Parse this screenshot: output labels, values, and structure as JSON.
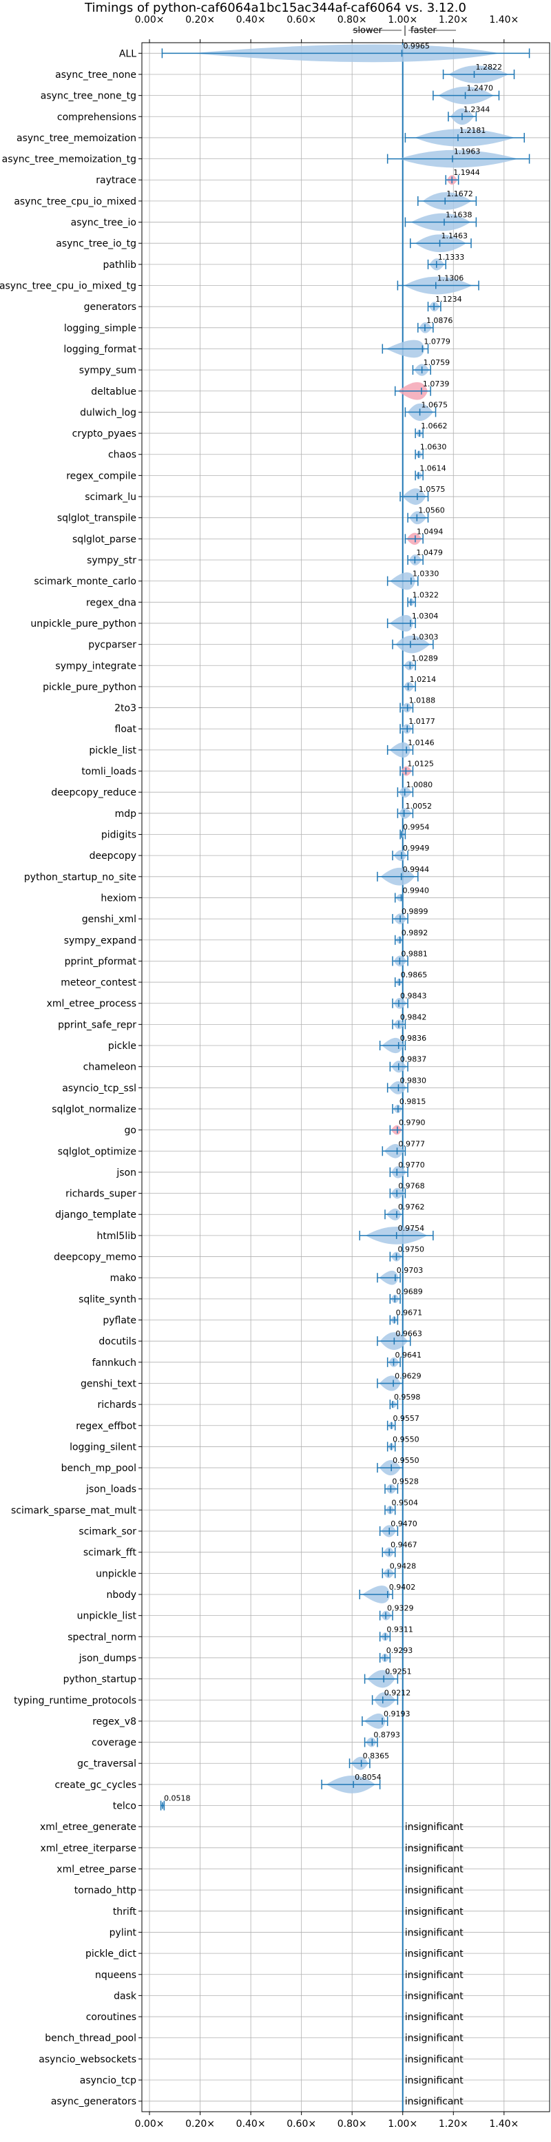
{
  "chart_data": {
    "type": "violin",
    "title": "Timings of python-caf6064a1bc15ac344af-caf6064 vs. 3.12.0",
    "direction_labels": {
      "slower": "slower",
      "faster": "faster"
    },
    "x_ticks": [
      "0.00×",
      "0.20×",
      "0.40×",
      "0.60×",
      "0.80×",
      "1.00×",
      "1.20×",
      "1.40×"
    ],
    "x_tick_values": [
      0,
      0.2,
      0.4,
      0.6,
      0.8,
      1.0,
      1.2,
      1.4
    ],
    "xlim": [
      -0.03,
      1.58
    ],
    "reference_line": 1.0,
    "insignificant_label": "insignificant",
    "colors": {
      "violin": "#a9c9e8",
      "whisker": "#1f77b4",
      "reference": "#1f77b4",
      "highlight": "#f4a6b5"
    },
    "benchmarks": [
      {
        "name": "ALL",
        "value": 0.9965,
        "label": "0.9965",
        "min": 0.05,
        "max": 1.5
      },
      {
        "name": "async_tree_none",
        "value": 1.2822,
        "label": "1.2822",
        "min": 1.16,
        "max": 1.44
      },
      {
        "name": "async_tree_none_tg",
        "value": 1.247,
        "label": "1.2470",
        "min": 1.12,
        "max": 1.38
      },
      {
        "name": "comprehensions",
        "value": 1.2344,
        "label": "1.2344",
        "min": 1.18,
        "max": 1.29
      },
      {
        "name": "async_tree_memoization",
        "value": 1.2181,
        "label": "1.2181",
        "min": 1.01,
        "max": 1.48
      },
      {
        "name": "async_tree_memoization_tg",
        "value": 1.1963,
        "label": "1.1963",
        "min": 0.94,
        "max": 1.5
      },
      {
        "name": "raytrace",
        "value": 1.1944,
        "label": "1.1944",
        "min": 1.17,
        "max": 1.22,
        "highlight": true
      },
      {
        "name": "async_tree_cpu_io_mixed",
        "value": 1.1672,
        "label": "1.1672",
        "min": 1.06,
        "max": 1.29
      },
      {
        "name": "async_tree_io",
        "value": 1.1638,
        "label": "1.1638",
        "min": 1.01,
        "max": 1.29
      },
      {
        "name": "async_tree_io_tg",
        "value": 1.1463,
        "label": "1.1463",
        "min": 1.03,
        "max": 1.27
      },
      {
        "name": "pathlib",
        "value": 1.1333,
        "label": "1.1333",
        "min": 1.1,
        "max": 1.17
      },
      {
        "name": "async_tree_cpu_io_mixed_tg",
        "value": 1.1306,
        "label": "1.1306",
        "min": 0.98,
        "max": 1.3
      },
      {
        "name": "generators",
        "value": 1.1234,
        "label": "1.1234",
        "min": 1.1,
        "max": 1.15
      },
      {
        "name": "logging_simple",
        "value": 1.0876,
        "label": "1.0876",
        "min": 1.06,
        "max": 1.12
      },
      {
        "name": "logging_format",
        "value": 1.0779,
        "label": "1.0779",
        "min": 0.92,
        "max": 1.1
      },
      {
        "name": "sympy_sum",
        "value": 1.0759,
        "label": "1.0759",
        "min": 1.04,
        "max": 1.11
      },
      {
        "name": "deltablue",
        "value": 1.0739,
        "label": "1.0739",
        "min": 0.97,
        "max": 1.11,
        "highlight": true
      },
      {
        "name": "dulwich_log",
        "value": 1.0675,
        "label": "1.0675",
        "min": 1.01,
        "max": 1.13
      },
      {
        "name": "crypto_pyaes",
        "value": 1.0662,
        "label": "1.0662",
        "min": 1.05,
        "max": 1.08
      },
      {
        "name": "chaos",
        "value": 1.063,
        "label": "1.0630",
        "min": 1.05,
        "max": 1.08
      },
      {
        "name": "regex_compile",
        "value": 1.0614,
        "label": "1.0614",
        "min": 1.05,
        "max": 1.08
      },
      {
        "name": "scimark_lu",
        "value": 1.0575,
        "label": "1.0575",
        "min": 0.99,
        "max": 1.1
      },
      {
        "name": "sqlglot_transpile",
        "value": 1.056,
        "label": "1.0560",
        "min": 1.02,
        "max": 1.1
      },
      {
        "name": "sqlglot_parse",
        "value": 1.0494,
        "label": "1.0494",
        "min": 1.01,
        "max": 1.08,
        "highlight": true
      },
      {
        "name": "sympy_str",
        "value": 1.0479,
        "label": "1.0479",
        "min": 1.02,
        "max": 1.08
      },
      {
        "name": "scimark_monte_carlo",
        "value": 1.033,
        "label": "1.0330",
        "min": 0.94,
        "max": 1.06
      },
      {
        "name": "regex_dna",
        "value": 1.0322,
        "label": "1.0322",
        "min": 1.02,
        "max": 1.05
      },
      {
        "name": "unpickle_pure_python",
        "value": 1.0304,
        "label": "1.0304",
        "min": 0.94,
        "max": 1.05
      },
      {
        "name": "pycparser",
        "value": 1.0303,
        "label": "1.0303",
        "min": 0.96,
        "max": 1.12
      },
      {
        "name": "sympy_integrate",
        "value": 1.0289,
        "label": "1.0289",
        "min": 1.0,
        "max": 1.05
      },
      {
        "name": "pickle_pure_python",
        "value": 1.0214,
        "label": "1.0214",
        "min": 1.0,
        "max": 1.05
      },
      {
        "name": "2to3",
        "value": 1.0188,
        "label": "1.0188",
        "min": 0.99,
        "max": 1.04
      },
      {
        "name": "float",
        "value": 1.0177,
        "label": "1.0177",
        "min": 0.99,
        "max": 1.04
      },
      {
        "name": "pickle_list",
        "value": 1.0146,
        "label": "1.0146",
        "min": 0.94,
        "max": 1.04
      },
      {
        "name": "tomli_loads",
        "value": 1.0125,
        "label": "1.0125",
        "min": 0.99,
        "max": 1.04,
        "highlight": true
      },
      {
        "name": "deepcopy_reduce",
        "value": 1.008,
        "label": "1.0080",
        "min": 0.98,
        "max": 1.04
      },
      {
        "name": "mdp",
        "value": 1.0052,
        "label": "1.0052",
        "min": 0.98,
        "max": 1.04
      },
      {
        "name": "pidigits",
        "value": 0.9954,
        "label": "0.9954",
        "min": 0.99,
        "max": 1.01
      },
      {
        "name": "deepcopy",
        "value": 0.9949,
        "label": "0.9949",
        "min": 0.96,
        "max": 1.02
      },
      {
        "name": "python_startup_no_site",
        "value": 0.9944,
        "label": "0.9944",
        "min": 0.9,
        "max": 1.06
      },
      {
        "name": "hexiom",
        "value": 0.994,
        "label": "0.9940",
        "min": 0.97,
        "max": 1.0
      },
      {
        "name": "genshi_xml",
        "value": 0.9899,
        "label": "0.9899",
        "min": 0.96,
        "max": 1.02
      },
      {
        "name": "sympy_expand",
        "value": 0.9892,
        "label": "0.9892",
        "min": 0.97,
        "max": 1.0
      },
      {
        "name": "pprint_pformat",
        "value": 0.9881,
        "label": "0.9881",
        "min": 0.96,
        "max": 1.02
      },
      {
        "name": "meteor_contest",
        "value": 0.9865,
        "label": "0.9865",
        "min": 0.97,
        "max": 1.0
      },
      {
        "name": "xml_etree_process",
        "value": 0.9843,
        "label": "0.9843",
        "min": 0.96,
        "max": 1.02
      },
      {
        "name": "pprint_safe_repr",
        "value": 0.9842,
        "label": "0.9842",
        "min": 0.96,
        "max": 1.01
      },
      {
        "name": "pickle",
        "value": 0.9836,
        "label": "0.9836",
        "min": 0.91,
        "max": 1.01
      },
      {
        "name": "chameleon",
        "value": 0.9837,
        "label": "0.9837",
        "min": 0.95,
        "max": 1.02
      },
      {
        "name": "asyncio_tcp_ssl",
        "value": 0.983,
        "label": "0.9830",
        "min": 0.94,
        "max": 1.02
      },
      {
        "name": "sqlglot_normalize",
        "value": 0.9815,
        "label": "0.9815",
        "min": 0.96,
        "max": 1.0
      },
      {
        "name": "go",
        "value": 0.979,
        "label": "0.9790",
        "min": 0.95,
        "max": 1.0,
        "highlight": true
      },
      {
        "name": "sqlglot_optimize",
        "value": 0.9777,
        "label": "0.9777",
        "min": 0.92,
        "max": 1.01
      },
      {
        "name": "json",
        "value": 0.977,
        "label": "0.9770",
        "min": 0.95,
        "max": 1.02
      },
      {
        "name": "richards_super",
        "value": 0.9768,
        "label": "0.9768",
        "min": 0.95,
        "max": 1.01
      },
      {
        "name": "django_template",
        "value": 0.9762,
        "label": "0.9762",
        "min": 0.93,
        "max": 1.0
      },
      {
        "name": "html5lib",
        "value": 0.9754,
        "label": "0.9754",
        "min": 0.83,
        "max": 1.12
      },
      {
        "name": "deepcopy_memo",
        "value": 0.975,
        "label": "0.9750",
        "min": 0.95,
        "max": 1.0
      },
      {
        "name": "mako",
        "value": 0.9703,
        "label": "0.9703",
        "min": 0.9,
        "max": 0.99
      },
      {
        "name": "sqlite_synth",
        "value": 0.9689,
        "label": "0.9689",
        "min": 0.95,
        "max": 0.99
      },
      {
        "name": "pyflate",
        "value": 0.9671,
        "label": "0.9671",
        "min": 0.95,
        "max": 0.98
      },
      {
        "name": "docutils",
        "value": 0.9663,
        "label": "0.9663",
        "min": 0.9,
        "max": 1.03
      },
      {
        "name": "fannkuch",
        "value": 0.9641,
        "label": "0.9641",
        "min": 0.94,
        "max": 0.99
      },
      {
        "name": "genshi_text",
        "value": 0.9629,
        "label": "0.9629",
        "min": 0.9,
        "max": 1.0
      },
      {
        "name": "richards",
        "value": 0.9598,
        "label": "0.9598",
        "min": 0.95,
        "max": 0.98
      },
      {
        "name": "regex_effbot",
        "value": 0.9557,
        "label": "0.9557",
        "min": 0.94,
        "max": 0.97
      },
      {
        "name": "logging_silent",
        "value": 0.955,
        "label": "0.9550",
        "min": 0.94,
        "max": 0.97
      },
      {
        "name": "bench_mp_pool",
        "value": 0.955,
        "label": "0.9550",
        "min": 0.9,
        "max": 1.0
      },
      {
        "name": "json_loads",
        "value": 0.9528,
        "label": "0.9528",
        "min": 0.93,
        "max": 0.98
      },
      {
        "name": "scimark_sparse_mat_mult",
        "value": 0.9504,
        "label": "0.9504",
        "min": 0.93,
        "max": 0.97
      },
      {
        "name": "scimark_sor",
        "value": 0.947,
        "label": "0.9470",
        "min": 0.91,
        "max": 0.98
      },
      {
        "name": "scimark_fft",
        "value": 0.9467,
        "label": "0.9467",
        "min": 0.92,
        "max": 0.97
      },
      {
        "name": "unpickle",
        "value": 0.9428,
        "label": "0.9428",
        "min": 0.92,
        "max": 0.97
      },
      {
        "name": "nbody",
        "value": 0.9402,
        "label": "0.9402",
        "min": 0.83,
        "max": 0.96
      },
      {
        "name": "unpickle_list",
        "value": 0.9329,
        "label": "0.9329",
        "min": 0.91,
        "max": 0.96
      },
      {
        "name": "spectral_norm",
        "value": 0.9311,
        "label": "0.9311",
        "min": 0.91,
        "max": 0.95
      },
      {
        "name": "json_dumps",
        "value": 0.9293,
        "label": "0.9293",
        "min": 0.91,
        "max": 0.95
      },
      {
        "name": "python_startup",
        "value": 0.9251,
        "label": "0.9251",
        "min": 0.85,
        "max": 0.98
      },
      {
        "name": "typing_runtime_protocols",
        "value": 0.9212,
        "label": "0.9212",
        "min": 0.88,
        "max": 0.98
      },
      {
        "name": "regex_v8",
        "value": 0.9193,
        "label": "0.9193",
        "min": 0.84,
        "max": 0.94
      },
      {
        "name": "coverage",
        "value": 0.8793,
        "label": "0.8793",
        "min": 0.85,
        "max": 0.9
      },
      {
        "name": "gc_traversal",
        "value": 0.8365,
        "label": "0.8365",
        "min": 0.79,
        "max": 0.87
      },
      {
        "name": "create_gc_cycles",
        "value": 0.8054,
        "label": "0.8054",
        "min": 0.68,
        "max": 0.91
      },
      {
        "name": "telco",
        "value": 0.0518,
        "label": "0.0518",
        "min": 0.045,
        "max": 0.058
      },
      {
        "name": "xml_etree_generate",
        "insignificant": true
      },
      {
        "name": "xml_etree_iterparse",
        "insignificant": true
      },
      {
        "name": "xml_etree_parse",
        "insignificant": true
      },
      {
        "name": "tornado_http",
        "insignificant": true
      },
      {
        "name": "thrift",
        "insignificant": true
      },
      {
        "name": "pylint",
        "insignificant": true
      },
      {
        "name": "pickle_dict",
        "insignificant": true
      },
      {
        "name": "nqueens",
        "insignificant": true
      },
      {
        "name": "dask",
        "insignificant": true
      },
      {
        "name": "coroutines",
        "insignificant": true
      },
      {
        "name": "bench_thread_pool",
        "insignificant": true
      },
      {
        "name": "asyncio_websockets",
        "insignificant": true
      },
      {
        "name": "asyncio_tcp",
        "insignificant": true
      },
      {
        "name": "async_generators",
        "insignificant": true
      }
    ]
  }
}
